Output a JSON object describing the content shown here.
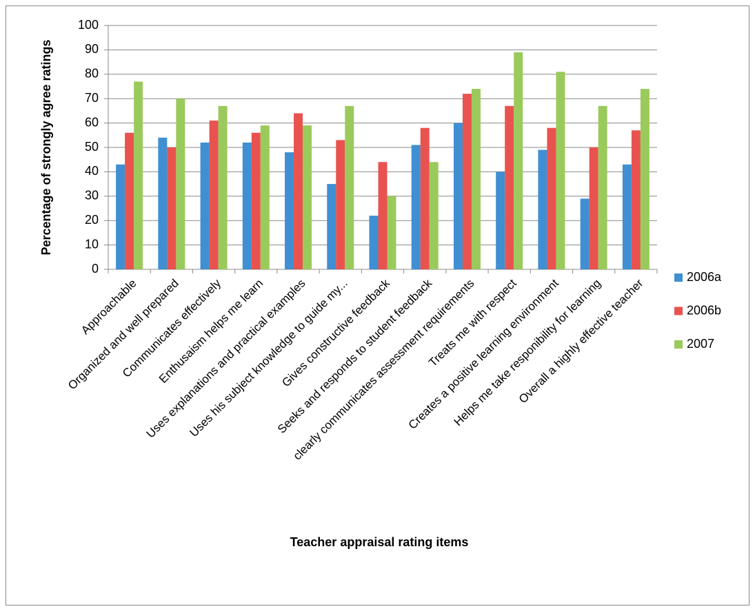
{
  "chart_data": {
    "type": "bar",
    "y_label": "Percentage of strongly agree ratings",
    "x_label": "Teacher appraisal rating items",
    "categories": [
      "Approachable",
      "Organized and well prepared",
      "Communicates effectively",
      "Enthusaism helps me learn",
      "Uses explanations and practical examples",
      "Uses his subject knowledge to guide my...",
      "Gives constructive feedback",
      "Seeks and responds to student feedback",
      "clearly communicates assessment requirements",
      "Treats me with respect",
      "Creates a positive learning environment",
      "Helps me take responibility for learning",
      "Overall a highly effective teacher"
    ],
    "series": [
      {
        "name": "2006a",
        "color": "#3f8fd2",
        "values": [
          43,
          54,
          52,
          52,
          48,
          35,
          22,
          51,
          60,
          40,
          49,
          29,
          43
        ]
      },
      {
        "name": "2006b",
        "color": "#e9534f",
        "values": [
          56,
          50,
          61,
          56,
          64,
          53,
          44,
          58,
          72,
          67,
          58,
          50,
          57
        ]
      },
      {
        "name": "2007",
        "color": "#9bca5c",
        "values": [
          77,
          70,
          67,
          59,
          59,
          67,
          30,
          44,
          74,
          89,
          81,
          67,
          74
        ]
      }
    ],
    "ylim": [
      0,
      100
    ],
    "yticks": [
      0,
      10,
      20,
      30,
      40,
      50,
      60,
      70,
      80,
      90,
      100
    ],
    "grid": true,
    "legend": "right"
  }
}
